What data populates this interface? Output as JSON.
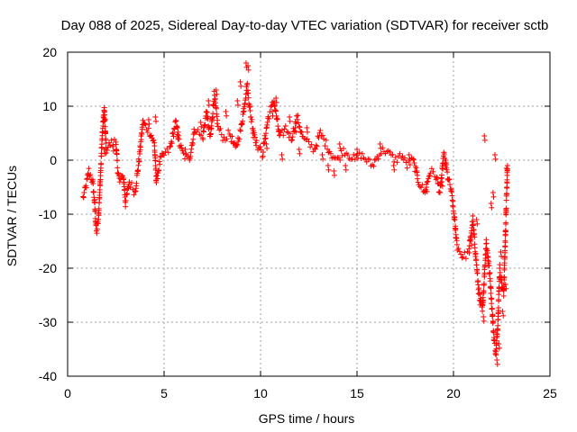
{
  "chart_data": {
    "type": "scatter",
    "title": "Day 088 of 2025, Sidereal Day-to-day VTEC variation (SDTVAR) for receiver sctb",
    "xlabel": "GPS time / hours",
    "ylabel": "SDTVAR / TECUs",
    "xlim": [
      0,
      25
    ],
    "ylim": [
      -40,
      20
    ],
    "xticks": [
      "0",
      "5",
      "10",
      "15",
      "20",
      "25"
    ],
    "yticks": [
      "20",
      "10",
      "0",
      "-10",
      "-20",
      "-30",
      "-40"
    ],
    "grid": true,
    "marker": "+",
    "colors": {
      "series": "#ff0000",
      "grid": "#a0a0a0",
      "axis": "#000000"
    },
    "series": [
      {
        "name": "SDTVAR",
        "trace_points": [
          [
            0.8,
            -7
          ],
          [
            0.95,
            -5
          ],
          [
            1.1,
            -2
          ],
          [
            1.3,
            -4
          ],
          [
            1.4,
            -8
          ],
          [
            1.5,
            -13.5
          ],
          [
            1.6,
            -11
          ],
          [
            1.7,
            -3
          ],
          [
            1.8,
            5
          ],
          [
            1.9,
            9.5
          ],
          [
            2.0,
            2
          ],
          [
            2.2,
            3
          ],
          [
            2.5,
            3.5
          ],
          [
            2.6,
            -2
          ],
          [
            2.7,
            -4
          ],
          [
            2.9,
            -3
          ],
          [
            3.0,
            -8
          ],
          [
            3.2,
            -4
          ],
          [
            3.5,
            -6
          ],
          [
            3.7,
            0
          ],
          [
            3.9,
            7
          ],
          [
            4.1,
            6
          ],
          [
            4.3,
            5
          ],
          [
            4.5,
            3
          ],
          [
            4.6,
            -4
          ],
          [
            4.8,
            0
          ],
          [
            5.0,
            1
          ],
          [
            5.3,
            2
          ],
          [
            5.6,
            7
          ],
          [
            5.8,
            3
          ],
          [
            6.0,
            1
          ],
          [
            6.3,
            0
          ],
          [
            6.6,
            6
          ],
          [
            7.0,
            4
          ],
          [
            7.2,
            9
          ],
          [
            7.4,
            4
          ],
          [
            7.6,
            12
          ],
          [
            7.8,
            6
          ],
          [
            8.1,
            4
          ],
          [
            8.4,
            5
          ],
          [
            8.7,
            2
          ],
          [
            9.0,
            6
          ],
          [
            9.3,
            14
          ],
          [
            9.5,
            8
          ],
          [
            9.8,
            3
          ],
          [
            10.1,
            1
          ],
          [
            10.4,
            8
          ],
          [
            10.7,
            11
          ],
          [
            11.0,
            4
          ],
          [
            11.3,
            6
          ],
          [
            11.6,
            4
          ],
          [
            11.9,
            8
          ],
          [
            12.2,
            4
          ],
          [
            12.5,
            3
          ],
          [
            12.8,
            2
          ],
          [
            13.1,
            5
          ],
          [
            13.4,
            3
          ],
          [
            13.7,
            1
          ],
          [
            14.0,
            0
          ],
          [
            14.3,
            2
          ],
          [
            14.6,
            1
          ],
          [
            14.9,
            0
          ],
          [
            15.2,
            1
          ],
          [
            15.5,
            0
          ],
          [
            15.8,
            -1
          ],
          [
            16.1,
            1
          ],
          [
            16.4,
            2
          ],
          [
            16.7,
            1
          ],
          [
            17.0,
            0
          ],
          [
            17.3,
            1
          ],
          [
            17.6,
            -1
          ],
          [
            17.9,
            0
          ],
          [
            18.2,
            -4
          ],
          [
            18.5,
            -6
          ],
          [
            18.8,
            -2
          ],
          [
            19.1,
            -3
          ],
          [
            19.3,
            -6
          ],
          [
            19.5,
            1
          ],
          [
            19.7,
            -3
          ],
          [
            19.9,
            -6
          ],
          [
            20.2,
            -16
          ],
          [
            20.5,
            -18
          ],
          [
            20.8,
            -17
          ],
          [
            21.0,
            -11
          ],
          [
            21.3,
            -24
          ],
          [
            21.5,
            -28
          ],
          [
            21.7,
            -15
          ],
          [
            21.9,
            -22
          ],
          [
            22.1,
            -33
          ],
          [
            22.2,
            -36
          ],
          [
            22.3,
            -30
          ],
          [
            22.4,
            -20
          ],
          [
            22.6,
            -25
          ],
          [
            22.8,
            -1
          ]
        ],
        "cluster_points": [
          [
            1.85,
            8
          ],
          [
            1.9,
            2
          ],
          [
            2.35,
            2.5
          ],
          [
            4.2,
            7.5
          ],
          [
            4.55,
            8
          ],
          [
            5.7,
            6
          ],
          [
            6.1,
            2
          ],
          [
            6.9,
            7
          ],
          [
            7.3,
            11
          ],
          [
            7.7,
            13
          ],
          [
            8.2,
            9
          ],
          [
            8.8,
            11
          ],
          [
            8.95,
            14.5
          ],
          [
            9.25,
            18
          ],
          [
            9.35,
            17.5
          ],
          [
            9.6,
            5
          ],
          [
            10.3,
            3
          ],
          [
            10.6,
            9
          ],
          [
            10.8,
            11.5
          ],
          [
            11.1,
            1
          ],
          [
            11.5,
            8
          ],
          [
            11.8,
            6
          ],
          [
            12.0,
            2
          ],
          [
            12.4,
            6
          ],
          [
            13.2,
            1
          ],
          [
            13.5,
            -1
          ],
          [
            13.8,
            -2
          ],
          [
            14.1,
            3
          ],
          [
            14.4,
            -1
          ],
          [
            15.0,
            2
          ],
          [
            16.2,
            3
          ],
          [
            16.9,
            -1
          ],
          [
            17.7,
            1
          ],
          [
            18.1,
            -2
          ],
          [
            18.6,
            -5
          ],
          [
            19.4,
            -4
          ],
          [
            19.6,
            0
          ],
          [
            20.1,
            -13
          ],
          [
            20.9,
            -15
          ],
          [
            21.2,
            -11
          ],
          [
            21.35,
            -26
          ],
          [
            21.55,
            -29
          ],
          [
            21.6,
            4.5
          ],
          [
            21.8,
            -18
          ],
          [
            21.95,
            -8
          ],
          [
            22.05,
            -6
          ],
          [
            22.15,
            1
          ],
          [
            22.25,
            -37
          ],
          [
            22.35,
            -34
          ],
          [
            22.45,
            -17
          ],
          [
            22.55,
            -28
          ],
          [
            22.7,
            -23
          ],
          [
            22.75,
            -1.5
          ]
        ]
      }
    ]
  }
}
